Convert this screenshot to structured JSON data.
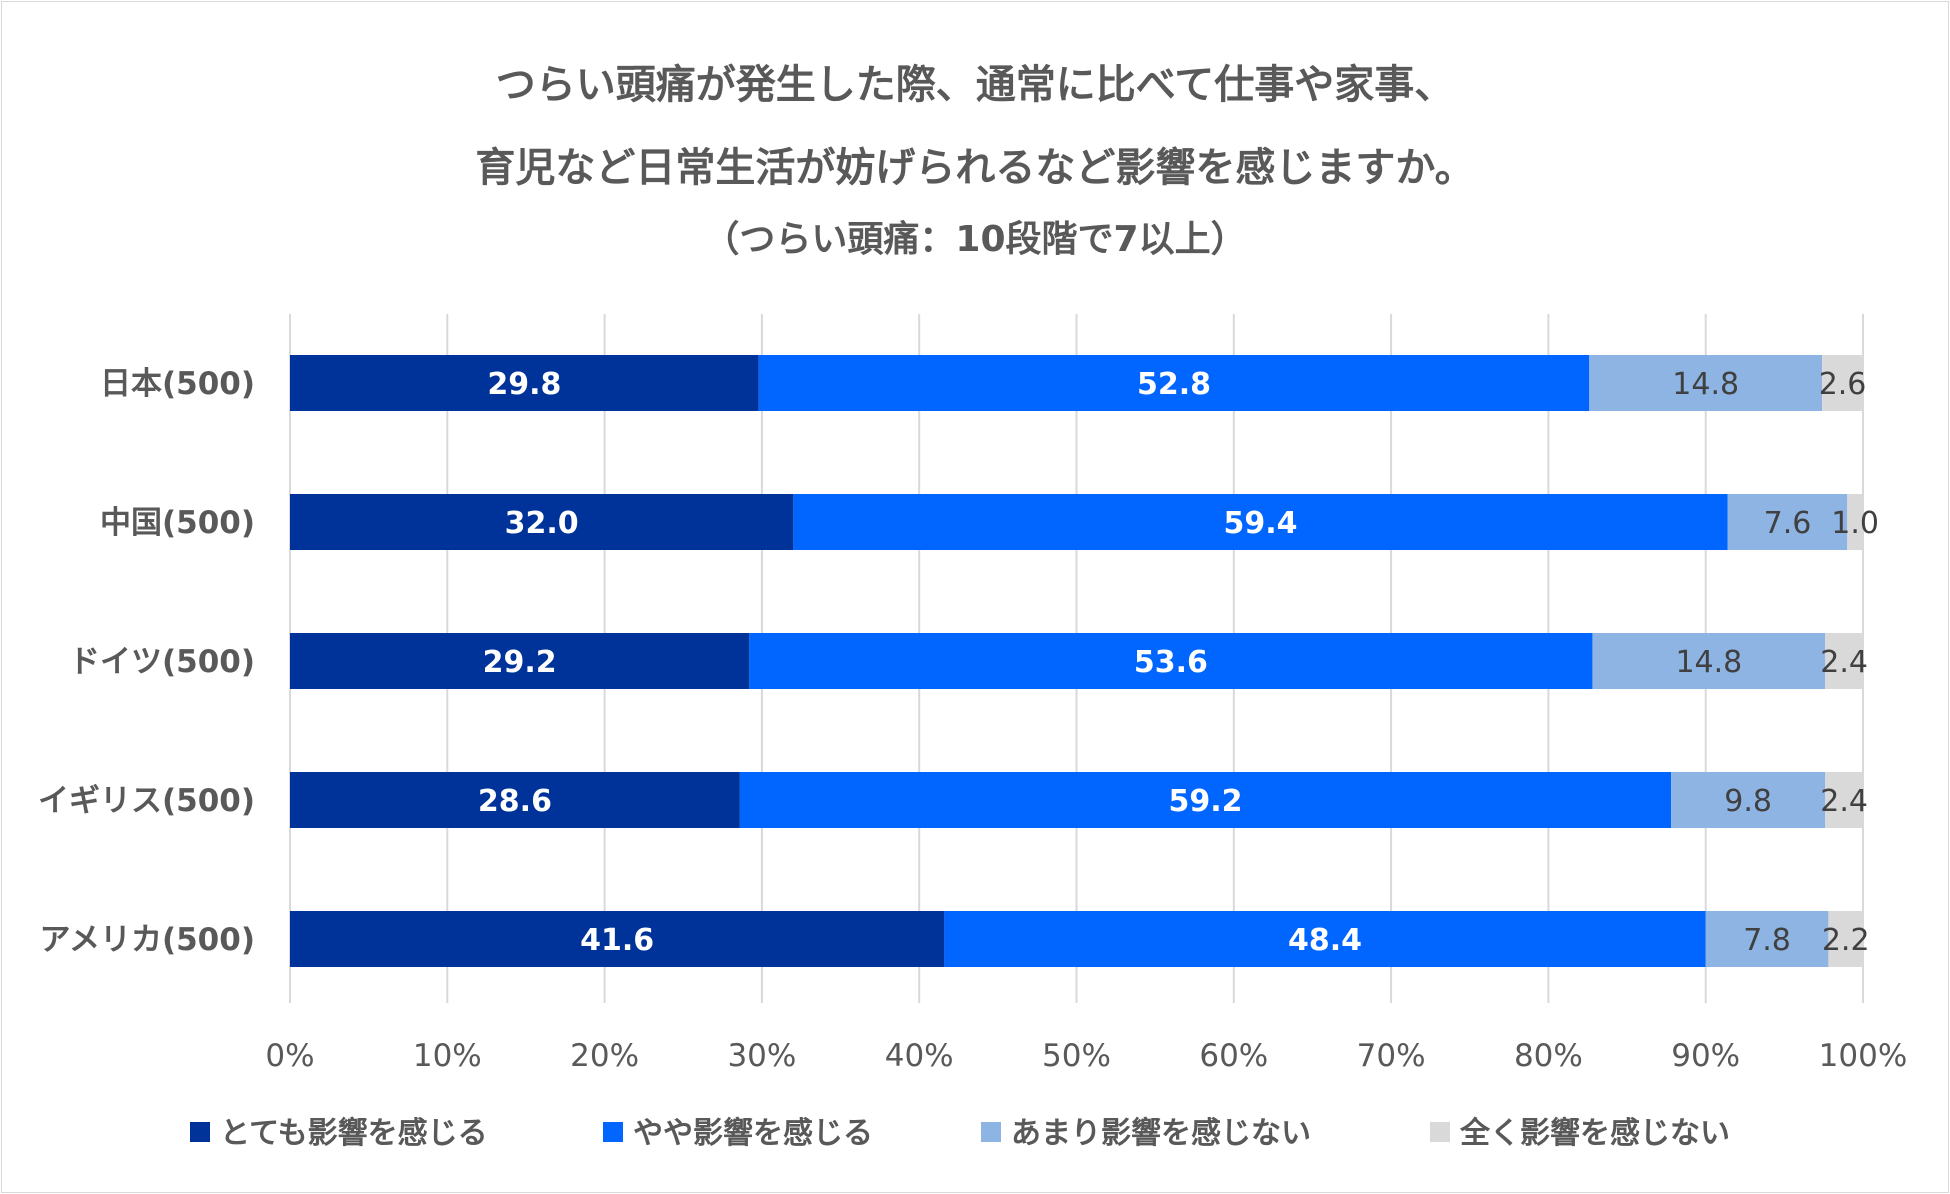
{
  "chart_data": {
    "type": "bar",
    "orientation": "horizontal",
    "stacked": true,
    "title_lines": [
      "つらい頭痛が発生した際、通常に比べて仕事や家事、",
      "育児など日常生活が妨げられるなど影響を感じますか。"
    ],
    "subtitle": "（つらい頭痛：10段階で7以上）",
    "categories": [
      "日本(500)",
      "中国(500)",
      "ドイツ(500)",
      "イギリス(500)",
      "アメリカ(500)"
    ],
    "series": [
      {
        "name": "とても影響を感じる",
        "color": "#003399",
        "label_color": "#ffffff",
        "values": [
          29.8,
          32.0,
          29.2,
          28.6,
          41.6
        ]
      },
      {
        "name": "やや影響を感じる",
        "color": "#0066ff",
        "label_color": "#ffffff",
        "values": [
          52.8,
          59.4,
          53.6,
          59.2,
          48.4
        ]
      },
      {
        "name": "あまり影響を感じない",
        "color": "#8eb4e3",
        "label_color": "#404040",
        "values": [
          14.8,
          7.6,
          14.8,
          9.8,
          7.8
        ]
      },
      {
        "name": "全く影響を感じない",
        "color": "#d9d9d9",
        "label_color": "#404040",
        "values": [
          2.6,
          1.0,
          2.4,
          2.4,
          2.2
        ]
      }
    ],
    "xlim": [
      0,
      100
    ],
    "x_ticks": [
      "0%",
      "10%",
      "20%",
      "30%",
      "40%",
      "50%",
      "60%",
      "70%",
      "80%",
      "90%",
      "100%"
    ],
    "grid": true,
    "legend_position": "bottom"
  }
}
